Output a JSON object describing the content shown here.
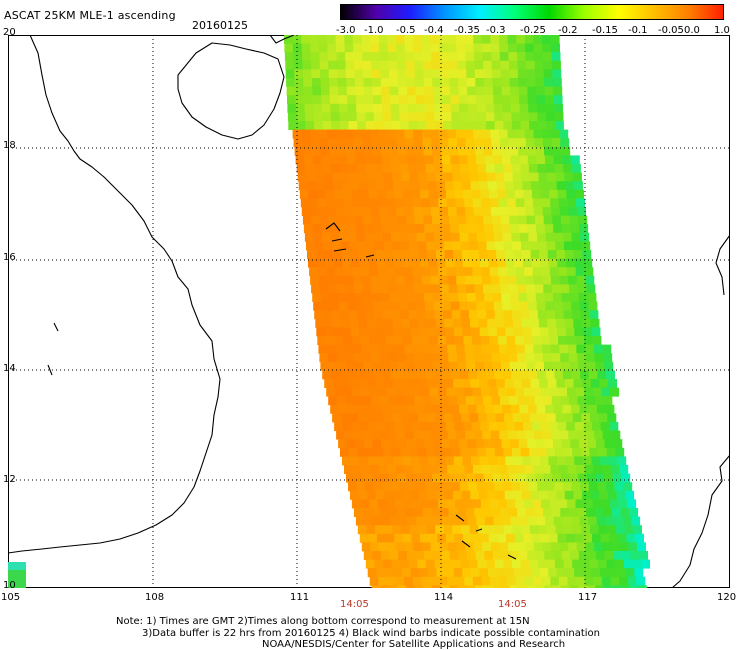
{
  "header": {
    "title": "ASCAT 25KM MLE-1 ascending",
    "date": "20160125"
  },
  "colorbar": {
    "labels": [
      "-3.0",
      "-1.0",
      "-0.5",
      "-0.4",
      "-0.35",
      "-0.3",
      "-0.25",
      "-0.2",
      "-0.15",
      "-0.1",
      "-0.05",
      "0.0",
      "1.0"
    ],
    "colors": [
      "#000000",
      "#5000a8",
      "#1e1eff",
      "#0096ff",
      "#00f0ff",
      "#00ff78",
      "#00d800",
      "#9bff00",
      "#ffff00",
      "#ffc000",
      "#ff8000",
      "#ff2000"
    ]
  },
  "map": {
    "longitude_labels": [
      "105",
      "108",
      "111",
      "114",
      "117",
      "120"
    ],
    "latitude_labels": [
      "20",
      "18",
      "16",
      "14",
      "12",
      "10"
    ],
    "swath_times": [
      "14:05",
      "14:05"
    ]
  },
  "footer": {
    "note_line1": "Note: 1) Times are GMT 2)Times along bottom correspond to measurement at 15N",
    "note_line2": "3)Data buffer is 22 hrs from 20160125 4) Black wind barbs indicate possible contamination",
    "credit": "NOAA/NESDIS/Center for Satellite Applications and Research"
  }
}
